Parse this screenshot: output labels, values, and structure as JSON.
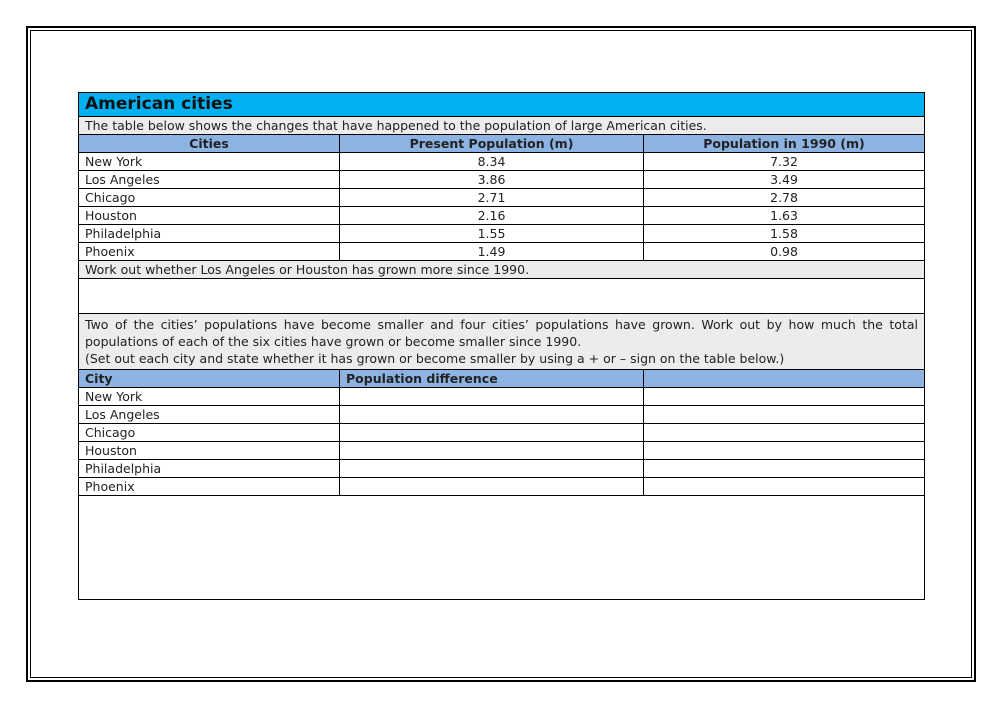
{
  "title": "American cities",
  "intro": "The table below shows the changes that have happened to the population of large American cities.",
  "table1": {
    "headers": [
      "Cities",
      "Present Population (m)",
      "Population in 1990 (m)"
    ],
    "rows": [
      [
        "New York",
        "8.34",
        "7.32"
      ],
      [
        "Los Angeles",
        "3.86",
        "3.49"
      ],
      [
        "Chicago",
        "2.71",
        "2.78"
      ],
      [
        "Houston",
        "2.16",
        "1.63"
      ],
      [
        "Philadelphia",
        "1.55",
        "1.58"
      ],
      [
        "Phoenix",
        "1.49",
        "0.98"
      ]
    ]
  },
  "question1": "Work out whether Los Angeles or Houston has grown more since 1990.",
  "question2": "Two of the cities’ populations have become smaller and four cities’ populations have grown. Work out by how much the total populations of each of the six cities have grown or become smaller since 1990.",
  "question2_note": "(Set out each city and state whether it has grown or become smaller by using a + or – sign on the table below.)",
  "table2": {
    "headers": [
      "City",
      "Population difference",
      ""
    ],
    "cities": [
      "New York",
      "Los Angeles",
      "Chicago",
      "Houston",
      "Philadelphia",
      "Phoenix"
    ]
  }
}
